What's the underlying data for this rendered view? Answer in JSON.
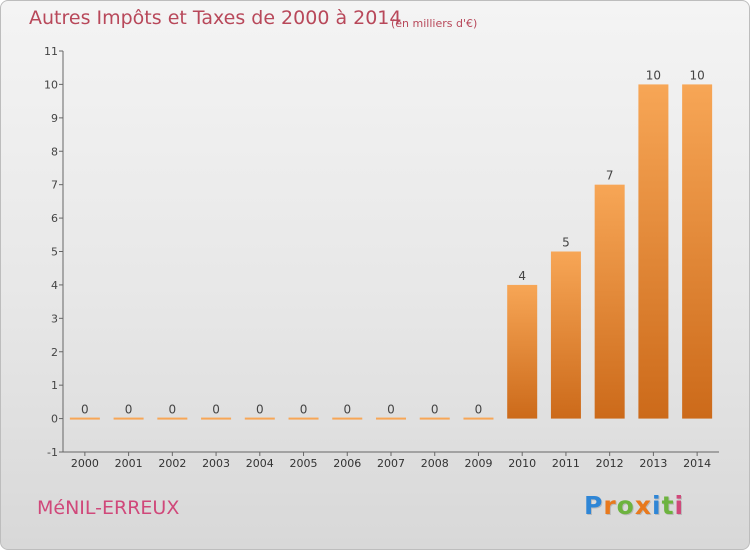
{
  "header": {
    "title": "Autres Impôts et Taxes de 2000 à 2014",
    "unit": "(en milliers d'€)"
  },
  "footer": {
    "commune": "MéNIL-ERREUX",
    "logo_text": "Proxiti"
  },
  "colors": {
    "bar_light": "#f7a656",
    "bar_dark": "#cc6a1a",
    "title": "#b8485a",
    "commune": "#d0487a",
    "logo_letters": [
      "#2f86d6",
      "#e8791d",
      "#6db33f",
      "#e8791d",
      "#2f86d6",
      "#6db33f",
      "#d0487a"
    ]
  },
  "chart_data": {
    "type": "bar",
    "title": "Autres Impôts et Taxes de 2000 à 2014",
    "subtitle": "(en milliers d'€)",
    "xlabel": "",
    "ylabel": "",
    "categories": [
      "2000",
      "2001",
      "2002",
      "2003",
      "2004",
      "2005",
      "2006",
      "2007",
      "2008",
      "2009",
      "2010",
      "2011",
      "2012",
      "2013",
      "2014"
    ],
    "values": [
      0,
      0,
      0,
      0,
      0,
      0,
      0,
      0,
      0,
      0,
      4,
      5,
      7,
      10,
      10
    ],
    "data_labels": [
      "0",
      "0",
      "0",
      "0",
      "0",
      "0",
      "0",
      "0",
      "0",
      "0",
      "4",
      "5",
      "7",
      "10",
      "10"
    ],
    "ylim": [
      -1,
      11
    ],
    "yticks": [
      "-1",
      "0",
      "1",
      "2",
      "3",
      "4",
      "5",
      "6",
      "7",
      "8",
      "9",
      "10",
      "11"
    ],
    "grid": false,
    "legend": "none"
  }
}
